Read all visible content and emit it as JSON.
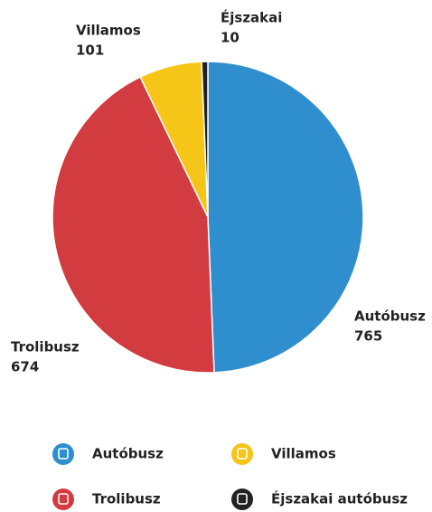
{
  "chart_data": {
    "type": "pie",
    "categories": [
      "Autóbusz",
      "Trolibusz",
      "Villamos",
      "Éjszakai autóbusz"
    ],
    "labels": [
      "Autóbusz",
      "Trolibusz",
      "Villamos",
      "Éjszakai"
    ],
    "values": [
      765,
      674,
      101,
      10
    ],
    "colors": [
      "#2f8fce",
      "#d23b3f",
      "#f5c518",
      "#222222"
    ]
  }
}
